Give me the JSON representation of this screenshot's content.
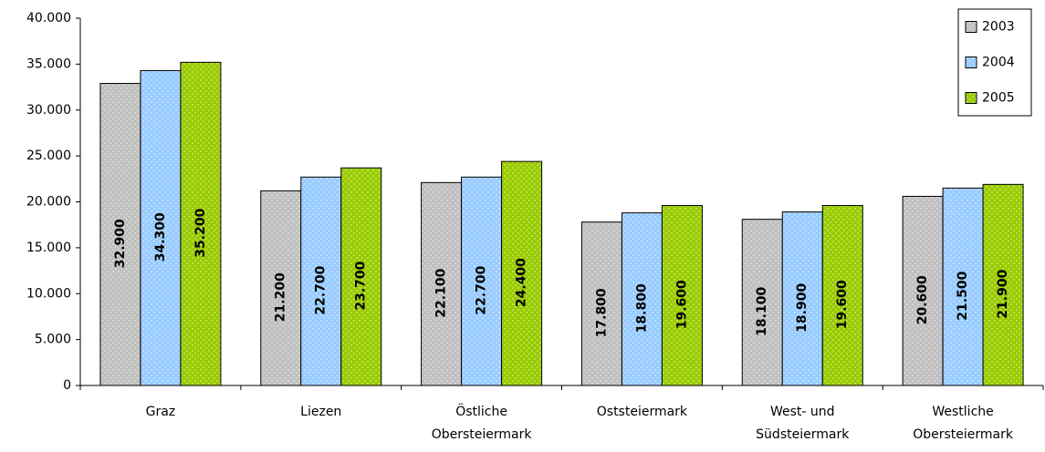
{
  "chart_data": {
    "type": "bar",
    "categories": [
      "Graz",
      "Liezen",
      "Östliche\nObersteiermark",
      "Oststeiermark",
      "West- und\nSüdsteiermark",
      "Westliche\nObersteiermark"
    ],
    "series": [
      {
        "name": "2003",
        "color": "#c0c0c0",
        "values": [
          32900,
          21200,
          22100,
          17800,
          18100,
          20600
        ],
        "value_labels": [
          "32.900",
          "21.200",
          "22.100",
          "17.800",
          "18.100",
          "20.600"
        ]
      },
      {
        "name": "2004",
        "color": "#99ccff",
        "values": [
          34300,
          22700,
          22700,
          18800,
          18900,
          21500
        ],
        "value_labels": [
          "34.300",
          "22.700",
          "22.700",
          "18.800",
          "18.900",
          "21.500"
        ]
      },
      {
        "name": "2005",
        "color": "#99cc00",
        "values": [
          35200,
          23700,
          24400,
          19600,
          19600,
          21900
        ],
        "value_labels": [
          "35.200",
          "23.700",
          "24.400",
          "19.600",
          "19.600",
          "21.900"
        ]
      }
    ],
    "ylim": [
      0,
      40000
    ],
    "yticks": [
      0,
      {
        "value": 5000,
        "label": "5.000"
      },
      {
        "value": 10000,
        "label": "10.000"
      },
      {
        "value": 15000,
        "label": "15.000"
      },
      {
        "value": 20000,
        "label": "20.000"
      },
      {
        "value": 25000,
        "label": "25.000"
      },
      {
        "value": 30000,
        "label": "30.000"
      },
      {
        "value": 35000,
        "label": "35.000"
      },
      {
        "value": 40000,
        "label": "40.000"
      }
    ],
    "legend": "upper right"
  }
}
